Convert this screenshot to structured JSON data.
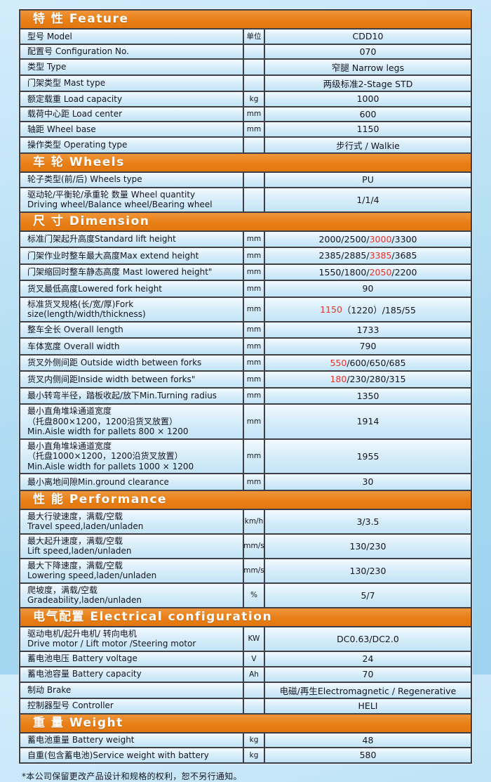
{
  "footnote": "*本公司保留更改产品设计和规格的权利，恕不另行通知。",
  "colors": {
    "accent_orange": "#E87F17",
    "red_highlight": "#E0362B",
    "grid_line": "#3F3F46",
    "row_fill": "#D9EEFA",
    "page_background": "#B3DDF4"
  },
  "table": {
    "sections": [
      {
        "id": "feature",
        "title": "特 性 Feature",
        "rows": [
          {
            "label": [
              "型号 Model"
            ],
            "unit": "单位",
            "value": [
              {
                "t": "CDD10"
              }
            ]
          },
          {
            "label": [
              "配置号 Configuration No."
            ],
            "unit": "",
            "value": [
              {
                "t": "070"
              }
            ]
          },
          {
            "label": [
              "类型 Type"
            ],
            "unit": "",
            "value": [
              {
                "t": "窄腿 Narrow legs"
              }
            ]
          },
          {
            "label": [
              "门架类型 Mast type"
            ],
            "unit": "",
            "value": [
              {
                "t": "两级标准2-Stage STD"
              }
            ]
          },
          {
            "label": [
              "额定载重 Load capacity"
            ],
            "unit": "kg",
            "value": [
              {
                "t": "1000"
              }
            ]
          },
          {
            "label": [
              "载荷中心距 Load center"
            ],
            "unit": "mm",
            "value": [
              {
                "t": "600"
              }
            ]
          },
          {
            "label": [
              "轴距 Wheel base"
            ],
            "unit": "mm",
            "value": [
              {
                "t": "1150"
              }
            ]
          },
          {
            "label": [
              "操作类型 Operating type"
            ],
            "unit": "",
            "value": [
              {
                "t": "步行式 / Walkie"
              }
            ]
          }
        ]
      },
      {
        "id": "wheels",
        "title": "车 轮 Wheels",
        "rows": [
          {
            "label": [
              "轮子类型(前/后) Wheels type"
            ],
            "unit": "",
            "value": [
              {
                "t": "PU"
              }
            ]
          },
          {
            "label": [
              "驱动轮/平衡轮/承重轮 数量 Wheel quantity",
              "Driving wheel/Balance wheel/Bearing wheel"
            ],
            "unit": "",
            "value": [
              {
                "t": "1/1/4"
              }
            ]
          }
        ]
      },
      {
        "id": "dimension",
        "title": "尺 寸 Dimension",
        "rows": [
          {
            "label": [
              "标准门架起升高度Standard lift height"
            ],
            "unit": "mm",
            "value": [
              {
                "t": "2000/2500/"
              },
              {
                "t": "3000",
                "red": true
              },
              {
                "t": "/3300"
              }
            ]
          },
          {
            "label": [
              "门架作业时整车最大高度Max extend height"
            ],
            "unit": "mm",
            "value": [
              {
                "t": "2385/2885/"
              },
              {
                "t": "3385",
                "red": true
              },
              {
                "t": "/3685"
              }
            ]
          },
          {
            "label": [
              "门架缩回时整车静态高度 Mast lowered height\""
            ],
            "unit": "mm",
            "value": [
              {
                "t": "1550/1800/"
              },
              {
                "t": "2050",
                "red": true
              },
              {
                "t": "/2200"
              }
            ]
          },
          {
            "label": [
              "货叉最低高度Lowered fork height"
            ],
            "unit": "mm",
            "value": [
              {
                "t": "90"
              }
            ]
          },
          {
            "label": [
              "标准货叉规格(长/宽/厚)Fork size(length/width/thickness)"
            ],
            "unit": "mm",
            "value": [
              {
                "t": "1150",
                "red": true
              },
              {
                "t": "（1220）/185/55"
              }
            ]
          },
          {
            "label": [
              "整车全长 Overall length"
            ],
            "unit": "mm",
            "value": [
              {
                "t": "1733"
              }
            ]
          },
          {
            "label": [
              "车体宽度 Overall width"
            ],
            "unit": "mm",
            "value": [
              {
                "t": "790"
              }
            ]
          },
          {
            "label": [
              "货叉外侧间距 Outside width between forks"
            ],
            "unit": "mm",
            "value": [
              {
                "t": "550",
                "red": true
              },
              {
                "t": "/600/650/685"
              }
            ]
          },
          {
            "label": [
              "货叉内侧间距Inside width between forks\""
            ],
            "unit": "mm",
            "value": [
              {
                "t": "180",
                "red": true
              },
              {
                "t": "/230/280/315"
              }
            ]
          },
          {
            "label": [
              "最小转弯半径，踏板收起/放下Min.Turning radius"
            ],
            "unit": "mm",
            "value": [
              {
                "t": "1350"
              }
            ]
          },
          {
            "label": [
              "最小直角堆垛通道宽度",
              "（托盘800×1200，1200沿货叉放置）",
              "Min.Aisle width for pallets 800 × 1200"
            ],
            "unit": "mm",
            "value": [
              {
                "t": "1914"
              }
            ]
          },
          {
            "label": [
              "最小直角堆垛通道宽度",
              "（托盘1000×1200，1200沿货叉放置）",
              "Min.Aisle width for pallets 1000 × 1200"
            ],
            "unit": "mm",
            "value": [
              {
                "t": "1955"
              }
            ]
          },
          {
            "label": [
              "最小离地间隙Min.ground clearance"
            ],
            "unit": "mm",
            "value": [
              {
                "t": "30"
              }
            ]
          }
        ]
      },
      {
        "id": "performance",
        "title": "性 能 Performance",
        "rows": [
          {
            "label": [
              "最大行驶速度，满载/空载",
              "Travel speed,laden/unladen"
            ],
            "unit": "km/h",
            "value": [
              {
                "t": "3/3.5"
              }
            ]
          },
          {
            "label": [
              "最大起升速度，满载/空载",
              "Lift speed,laden/unladen"
            ],
            "unit": "mm/s",
            "value": [
              {
                "t": "130/230"
              }
            ]
          },
          {
            "label": [
              "最大下降速度，满载/空载",
              "Lowering speed,laden/unladen"
            ],
            "unit": "mm/s",
            "value": [
              {
                "t": "130/230"
              }
            ]
          },
          {
            "label": [
              "爬坡度，满载/空载",
              "Gradeability,laden/unladen"
            ],
            "unit": "%",
            "value": [
              {
                "t": "5/7"
              }
            ]
          }
        ]
      },
      {
        "id": "electrical",
        "title": "电气配置 Electrical configuration",
        "rows": [
          {
            "label": [
              "驱动电机/起升电机/ 转向电机",
              "Drive motor / Lift motor /Steering motor"
            ],
            "unit": "KW",
            "value": [
              {
                "t": "DC0.63/DC2.0"
              }
            ]
          },
          {
            "label": [
              "蓄电池电压 Battery voltage"
            ],
            "unit": "V",
            "value": [
              {
                "t": "24"
              }
            ]
          },
          {
            "label": [
              "蓄电池容量 Battery capacity"
            ],
            "unit": "Ah",
            "value": [
              {
                "t": "70"
              }
            ]
          },
          {
            "label": [
              "制动 Brake"
            ],
            "unit": "",
            "value": [
              {
                "t": "电磁/再生Electromagnetic / Regenerative"
              }
            ]
          },
          {
            "label": [
              "控制器型号 Controller"
            ],
            "unit": "",
            "value": [
              {
                "t": "HELI"
              }
            ]
          }
        ]
      },
      {
        "id": "weight",
        "title": "重 量 Weight",
        "rows": [
          {
            "label": [
              "蓄电池重量 Battery weight"
            ],
            "unit": "kg",
            "value": [
              {
                "t": "48"
              }
            ]
          },
          {
            "label": [
              "自重(包含蓄电池)Service weight with battery"
            ],
            "unit": "kg",
            "value": [
              {
                "t": "580"
              }
            ]
          }
        ]
      }
    ]
  }
}
